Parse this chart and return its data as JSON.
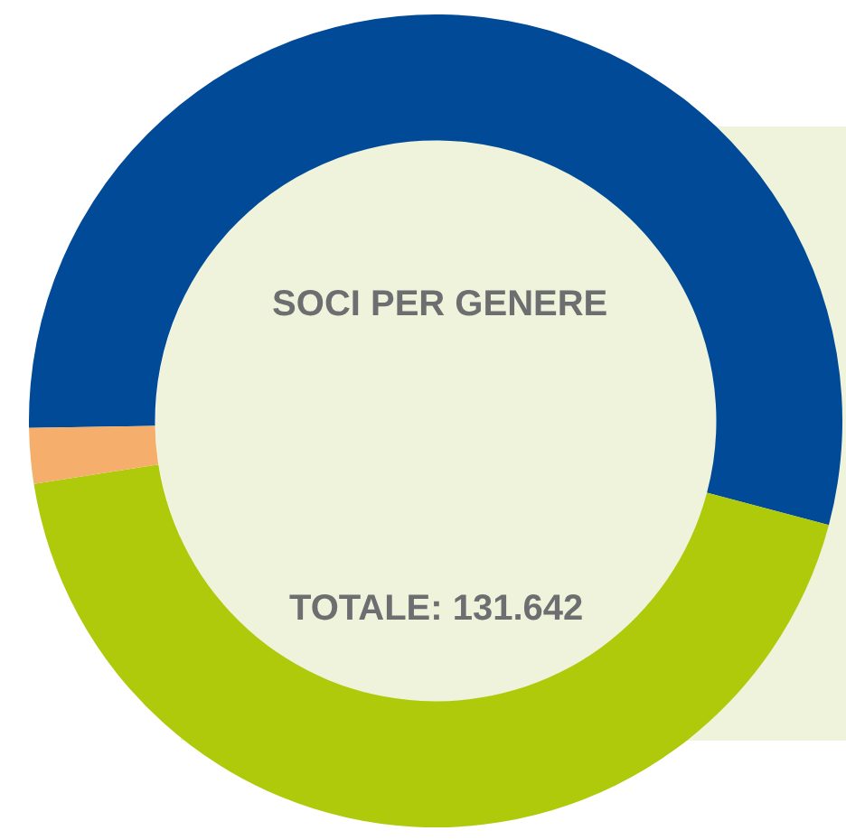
{
  "chart_data": {
    "type": "donut",
    "title": "SOCI PER GENERE",
    "annotations": [
      "TOTALE: 131.642"
    ],
    "categories": [
      null,
      null,
      null
    ],
    "values": [
      54.4,
      43.4,
      2.2
    ],
    "colors": [
      "#004a98",
      "#afca0b",
      "#f5ae6b"
    ],
    "legend": false
  }
}
